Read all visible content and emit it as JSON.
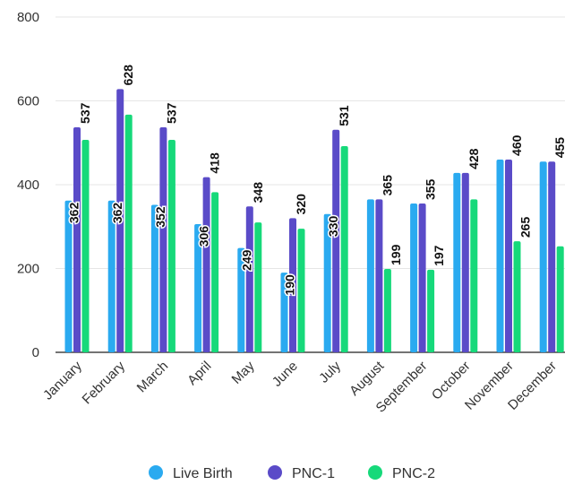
{
  "chart_data": {
    "type": "bar",
    "categories": [
      "January",
      "February",
      "March",
      "April",
      "May",
      "June",
      "July",
      "August",
      "September",
      "October",
      "November",
      "December"
    ],
    "series": [
      {
        "name": "Live Birth",
        "color": "#2aaaf0",
        "values": [
          362,
          362,
          352,
          306,
          249,
          190,
          330,
          365,
          355,
          428,
          460,
          455
        ],
        "labels": [
          "362",
          "362",
          "352",
          "306",
          "249",
          "190",
          "330",
          "",
          "",
          "",
          "",
          ""
        ]
      },
      {
        "name": "PNC-1",
        "color": "#5a4bc8",
        "values": [
          537,
          628,
          537,
          418,
          348,
          320,
          531,
          365,
          355,
          428,
          460,
          455
        ],
        "labels": [
          "537",
          "628",
          "537",
          "418",
          "348",
          "320",
          "531",
          "365",
          "355",
          "428",
          "460",
          "455"
        ]
      },
      {
        "name": "PNC-2",
        "color": "#16d97a",
        "values": [
          507,
          567,
          507,
          382,
          310,
          295,
          492,
          199,
          197,
          365,
          265,
          253
        ],
        "labels": [
          "",
          "",
          "",
          "",
          "",
          "",
          "",
          "199",
          "197",
          "",
          "265",
          ""
        ]
      }
    ],
    "yticks": [
      "0",
      "200",
      "400",
      "600",
      "800"
    ],
    "ylim": [
      0,
      800
    ],
    "grid": true,
    "legend_position": "bottom"
  }
}
